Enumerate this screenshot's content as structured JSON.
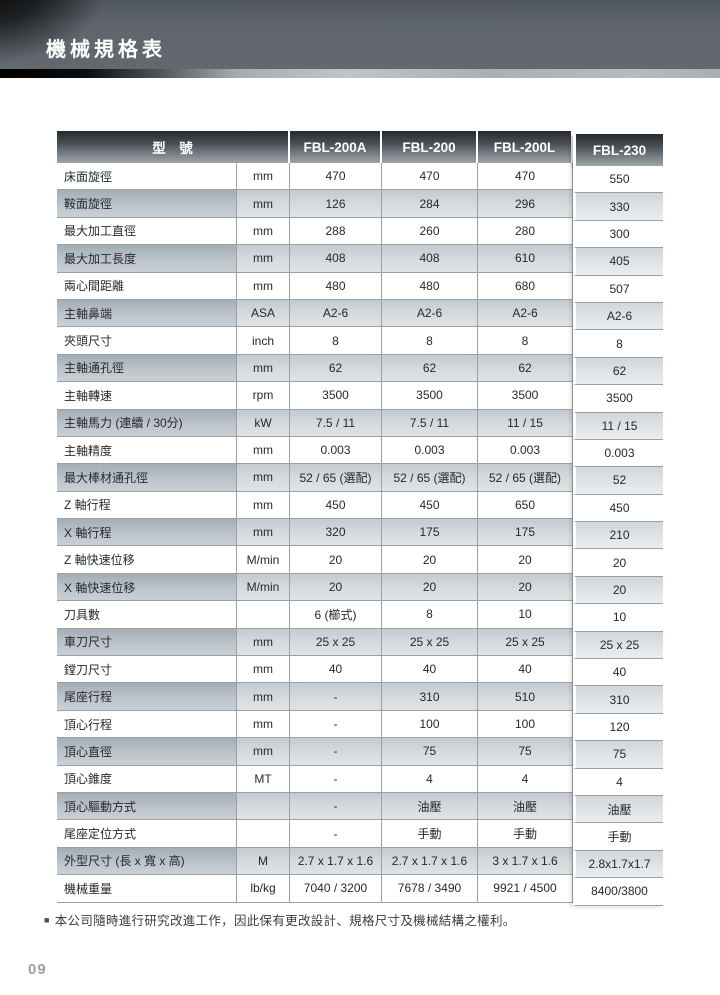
{
  "page": {
    "banner_title": "機械規格表",
    "page_number": "09"
  },
  "footnote": {
    "bullet": "■",
    "text": "本公司隨時進行研究改進工作，因此保有更改設計、規格尺寸及機械結構之權利。"
  },
  "table": {
    "header": {
      "model_label": "型　號",
      "models": [
        "FBL-200A",
        "FBL-200",
        "FBL-200L",
        "FBL-230"
      ]
    },
    "rows": [
      {
        "label": "床面旋徑",
        "unit": "mm",
        "values": [
          "470",
          "470",
          "470",
          "550"
        ]
      },
      {
        "label": "鞍面旋徑",
        "unit": "mm",
        "values": [
          "126",
          "284",
          "296",
          "330"
        ]
      },
      {
        "label": "最大加工直徑",
        "unit": "mm",
        "values": [
          "288",
          "260",
          "280",
          "300"
        ]
      },
      {
        "label": "最大加工長度",
        "unit": "mm",
        "values": [
          "408",
          "408",
          "610",
          "405"
        ]
      },
      {
        "label": "兩心間距離",
        "unit": "mm",
        "values": [
          "480",
          "480",
          "680",
          "507"
        ]
      },
      {
        "label": "主軸鼻端",
        "unit": "ASA",
        "values": [
          "A2-6",
          "A2-6",
          "A2-6",
          "A2-6"
        ]
      },
      {
        "label": "夾頭尺寸",
        "unit": "inch",
        "values": [
          "8",
          "8",
          "8",
          "8"
        ]
      },
      {
        "label": "主軸通孔徑",
        "unit": "mm",
        "values": [
          "62",
          "62",
          "62",
          "62"
        ]
      },
      {
        "label": "主軸轉速",
        "unit": "rpm",
        "values": [
          "3500",
          "3500",
          "3500",
          "3500"
        ]
      },
      {
        "label": "主軸馬力 (連續 / 30分)",
        "unit": "kW",
        "values": [
          "7.5 / 11",
          "7.5 / 11",
          "11 / 15",
          "11 / 15"
        ]
      },
      {
        "label": "主軸精度",
        "unit": "mm",
        "values": [
          "0.003",
          "0.003",
          "0.003",
          "0.003"
        ]
      },
      {
        "label": "最大棒材通孔徑",
        "unit": "mm",
        "values": [
          "52 / 65 (選配)",
          "52 / 65 (選配)",
          "52 / 65 (選配)",
          "52"
        ]
      },
      {
        "label": "Z 軸行程",
        "unit": "mm",
        "values": [
          "450",
          "450",
          "650",
          "450"
        ]
      },
      {
        "label": "X 軸行程",
        "unit": "mm",
        "values": [
          "320",
          "175",
          "175",
          "210"
        ]
      },
      {
        "label": "Z 軸快速位移",
        "unit": "M/min",
        "values": [
          "20",
          "20",
          "20",
          "20"
        ]
      },
      {
        "label": "X 軸快速位移",
        "unit": "M/min",
        "values": [
          "20",
          "20",
          "20",
          "20"
        ]
      },
      {
        "label": "刀具數",
        "unit": "",
        "values": [
          "6 (櫛式)",
          "8",
          "10",
          "10"
        ]
      },
      {
        "label": "車刀尺寸",
        "unit": "mm",
        "values": [
          "25 x 25",
          "25 x 25",
          "25 x 25",
          "25 x 25"
        ]
      },
      {
        "label": "鏜刀尺寸",
        "unit": "mm",
        "values": [
          "40",
          "40",
          "40",
          "40"
        ]
      },
      {
        "label": "尾座行程",
        "unit": "mm",
        "values": [
          "-",
          "310",
          "510",
          "310"
        ]
      },
      {
        "label": "頂心行程",
        "unit": "mm",
        "values": [
          "-",
          "100",
          "100",
          "120"
        ]
      },
      {
        "label": "頂心直徑",
        "unit": "mm",
        "values": [
          "-",
          "75",
          "75",
          "75"
        ]
      },
      {
        "label": "頂心錐度",
        "unit": "MT",
        "values": [
          "-",
          "4",
          "4",
          "4"
        ]
      },
      {
        "label": "頂心驅動方式",
        "unit": "",
        "values": [
          "-",
          "油壓",
          "油壓",
          "油壓"
        ]
      },
      {
        "label": "尾座定位方式",
        "unit": "",
        "values": [
          "-",
          "手動",
          "手動",
          "手動"
        ]
      },
      {
        "label": "外型尺寸 (長 x 寬 x 高)",
        "unit": "M",
        "values": [
          "2.7 x 1.7 x 1.6",
          "2.7 x 1.7 x 1.6",
          "3 x 1.7 x 1.6",
          "2.8x1.7x1.7"
        ]
      },
      {
        "label": "機械重量",
        "unit": "lb/kg",
        "values": [
          "7040 / 3200",
          "7678 / 3490",
          "9921 / 4500",
          "8400/3800"
        ]
      }
    ]
  }
}
